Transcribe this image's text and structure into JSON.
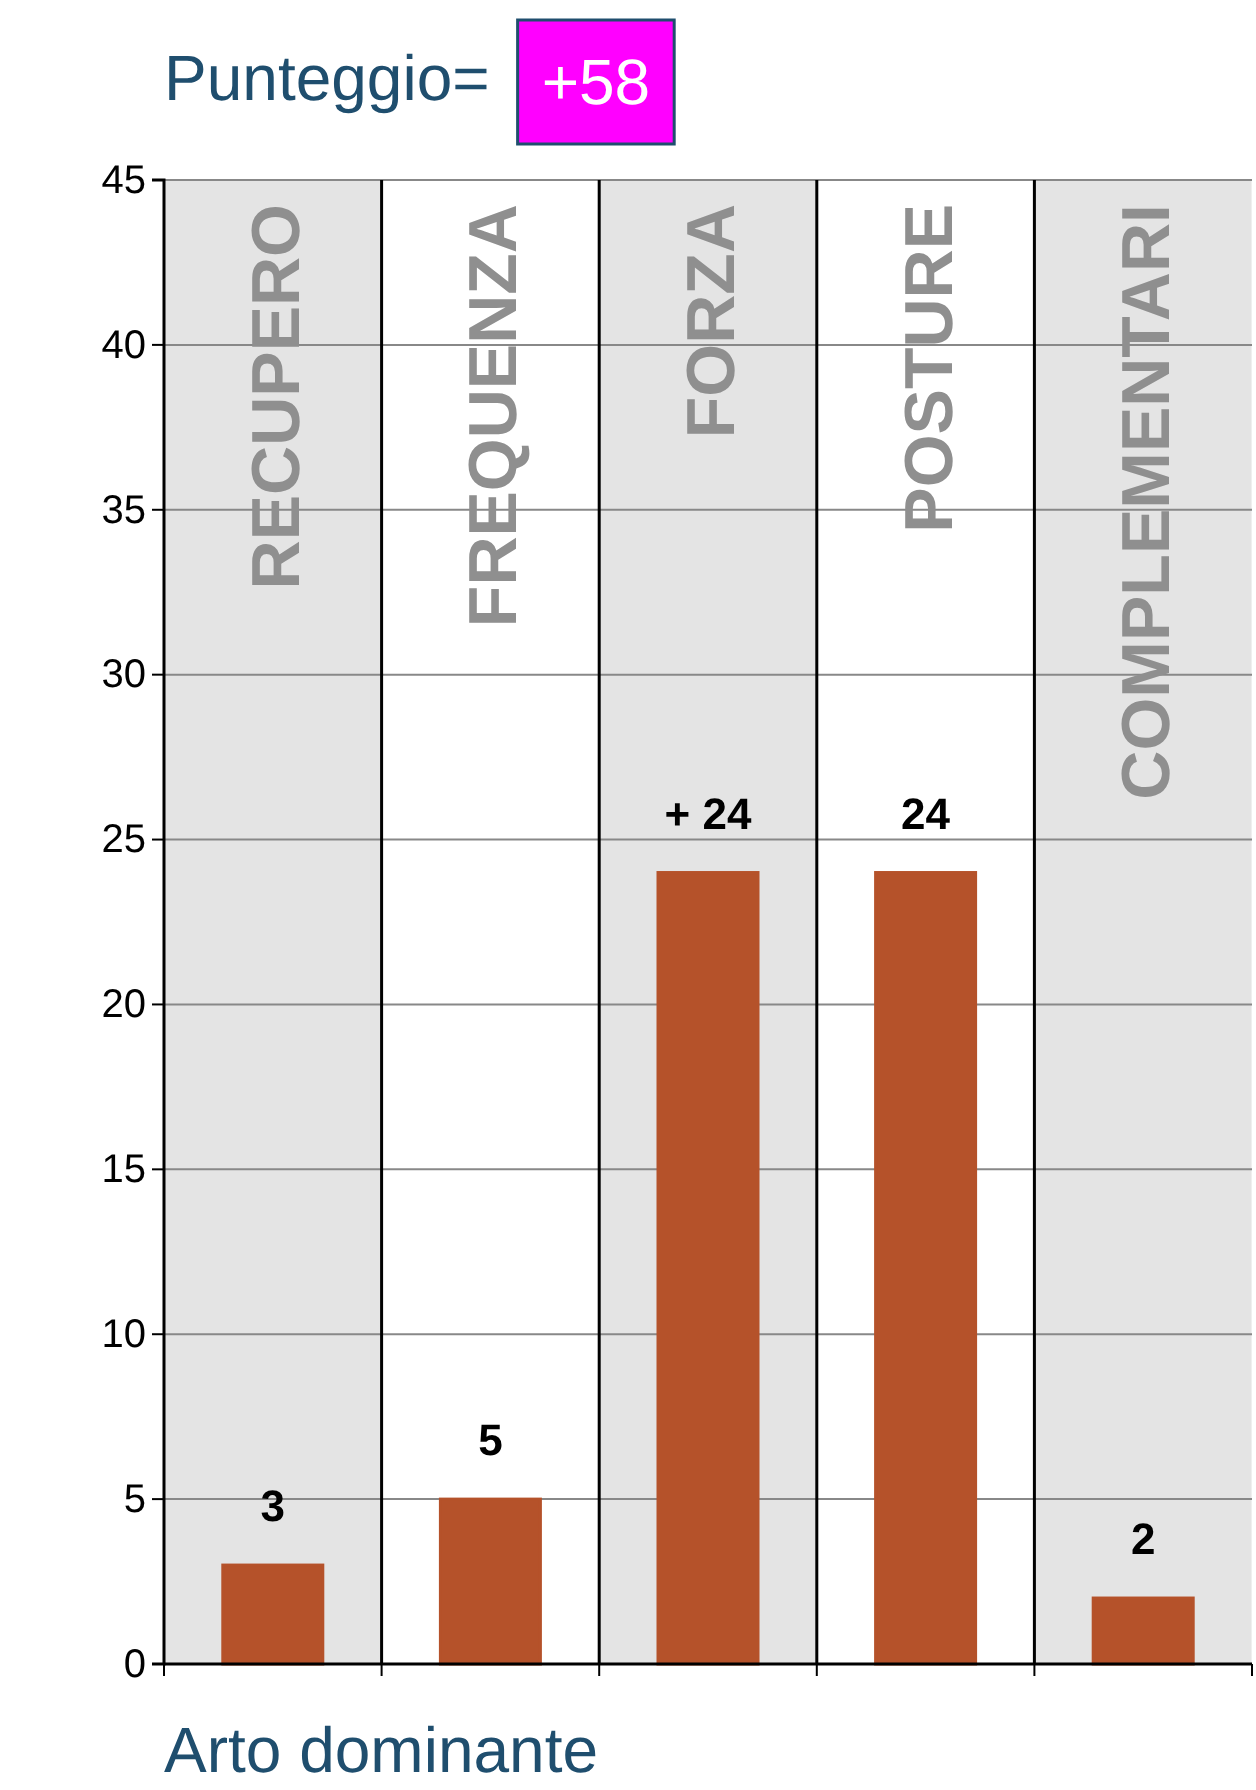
{
  "chart_data": {
    "type": "bar",
    "title": "Punteggio=",
    "annotations": [
      "+58"
    ],
    "xlabel": "Arto dominante",
    "categories": [
      "RECUPERO",
      "FREQUENZA",
      "FORZA",
      "POSTURE",
      "COMPLEMENTARI"
    ],
    "values": [
      3,
      5,
      24,
      24,
      2
    ],
    "value_labels": [
      "3",
      "5",
      "+ 24",
      "24",
      "2"
    ],
    "color": "#b5522a",
    "ylim": [
      0,
      45
    ],
    "yticks": [
      0,
      5,
      10,
      15,
      20,
      25,
      30,
      35,
      40,
      45
    ],
    "grid": "y"
  }
}
